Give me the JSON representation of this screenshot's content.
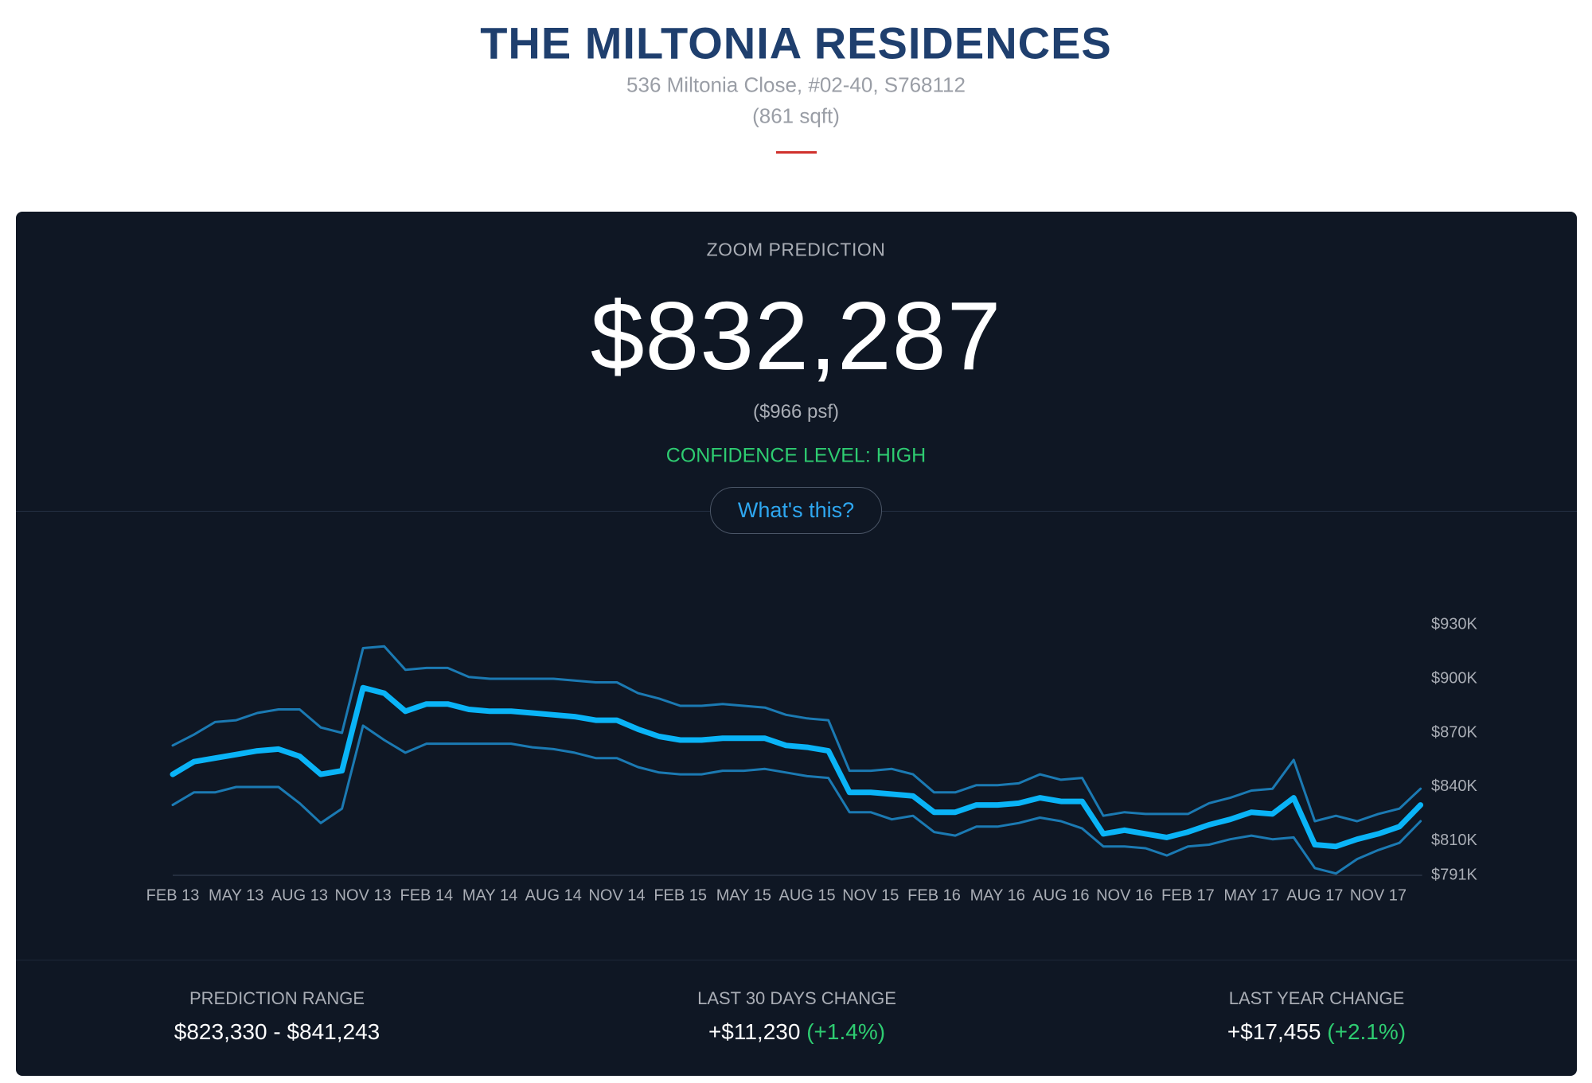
{
  "header": {
    "title": "THE MILTONIA RESIDENCES",
    "address": "536 Miltonia Close, #02-40, S768112",
    "size": "(861 sqft)"
  },
  "panel": {
    "label": "ZOOM PREDICTION",
    "price": "$832,287",
    "psf": "($966 psf)",
    "confidence": "CONFIDENCE LEVEL: HIGH",
    "button": "What's this?"
  },
  "chart_data": {
    "type": "line",
    "categories": [
      "FEB 13",
      null,
      null,
      "MAY 13",
      null,
      null,
      "AUG 13",
      null,
      null,
      "NOV 13",
      null,
      null,
      "FEB 14",
      null,
      null,
      "MAY 14",
      null,
      null,
      "AUG 14",
      null,
      null,
      "NOV 14",
      null,
      null,
      "FEB 15",
      null,
      null,
      "MAY 15",
      null,
      null,
      "AUG 15",
      null,
      null,
      "NOV 15",
      null,
      null,
      "FEB 16",
      null,
      null,
      "MAY 16",
      null,
      null,
      "AUG 16",
      null,
      null,
      "NOV 16",
      null,
      null,
      "FEB 17",
      null,
      null,
      "MAY 17",
      null,
      null,
      "AUG 17",
      null,
      null,
      "NOV 17",
      null,
      null
    ],
    "series": [
      {
        "color": "#1b7ab3",
        "values": [
          863000,
          869000,
          876000,
          877000,
          881000,
          883000,
          883000,
          873000,
          870000,
          917000,
          918000,
          905000,
          906000,
          906000,
          901000,
          900000,
          900000,
          900000,
          900000,
          899000,
          898000,
          898000,
          892000,
          889000,
          885000,
          885000,
          886000,
          885000,
          884000,
          880000,
          878000,
          877000,
          849000,
          849000,
          850000,
          847000,
          837000,
          837000,
          841000,
          841000,
          842000,
          847000,
          844000,
          845000,
          824000,
          826000,
          825000,
          825000,
          825000,
          831000,
          834000,
          838000,
          839000,
          855000,
          821000,
          824000,
          821000,
          825000,
          828000,
          839000
        ]
      },
      {
        "color": "#0ab4f7",
        "values": [
          847000,
          854000,
          856000,
          858000,
          860000,
          861000,
          857000,
          847000,
          849000,
          895000,
          892000,
          882000,
          886000,
          886000,
          883000,
          882000,
          882000,
          881000,
          880000,
          879000,
          877000,
          877000,
          872000,
          868000,
          866000,
          866000,
          867000,
          867000,
          867000,
          863000,
          862000,
          860000,
          837000,
          837000,
          836000,
          835000,
          826000,
          826000,
          830000,
          830000,
          831000,
          834000,
          832000,
          832000,
          814000,
          816000,
          814000,
          812000,
          815000,
          819000,
          822000,
          826000,
          825000,
          834000,
          808000,
          807000,
          811000,
          814000,
          818000,
          830000
        ]
      },
      {
        "color": "#1b7ab3",
        "values": [
          830000,
          837000,
          837000,
          840000,
          840000,
          840000,
          831000,
          820000,
          828000,
          874000,
          866000,
          859000,
          864000,
          864000,
          864000,
          864000,
          864000,
          862000,
          861000,
          859000,
          856000,
          856000,
          851000,
          848000,
          847000,
          847000,
          849000,
          849000,
          850000,
          848000,
          846000,
          845000,
          826000,
          826000,
          822000,
          824000,
          815000,
          813000,
          818000,
          818000,
          820000,
          823000,
          821000,
          817000,
          807000,
          807000,
          806000,
          802000,
          807000,
          808000,
          811000,
          813000,
          811000,
          812000,
          795000,
          792000,
          800000,
          805000,
          809000,
          821000
        ]
      }
    ],
    "ylim": [
      791000,
      930000
    ],
    "yticks": [
      {
        "value": 930000,
        "label": "$930K"
      },
      {
        "value": 900000,
        "label": "$900K"
      },
      {
        "value": 870000,
        "label": "$870K"
      },
      {
        "value": 840000,
        "label": "$840K"
      },
      {
        "value": 810000,
        "label": "$810K"
      },
      {
        "value": 791000,
        "label": "$791K"
      }
    ],
    "grid": false
  },
  "footer": [
    {
      "label": "PREDICTION RANGE",
      "value": "$823,330 - $841,243"
    },
    {
      "label": "LAST 30 DAYS CHANGE",
      "value": "+$11,230",
      "change": "(+1.4%)"
    },
    {
      "label": "LAST YEAR CHANGE",
      "value": "+$17,455",
      "change": "(+2.1%)"
    }
  ]
}
